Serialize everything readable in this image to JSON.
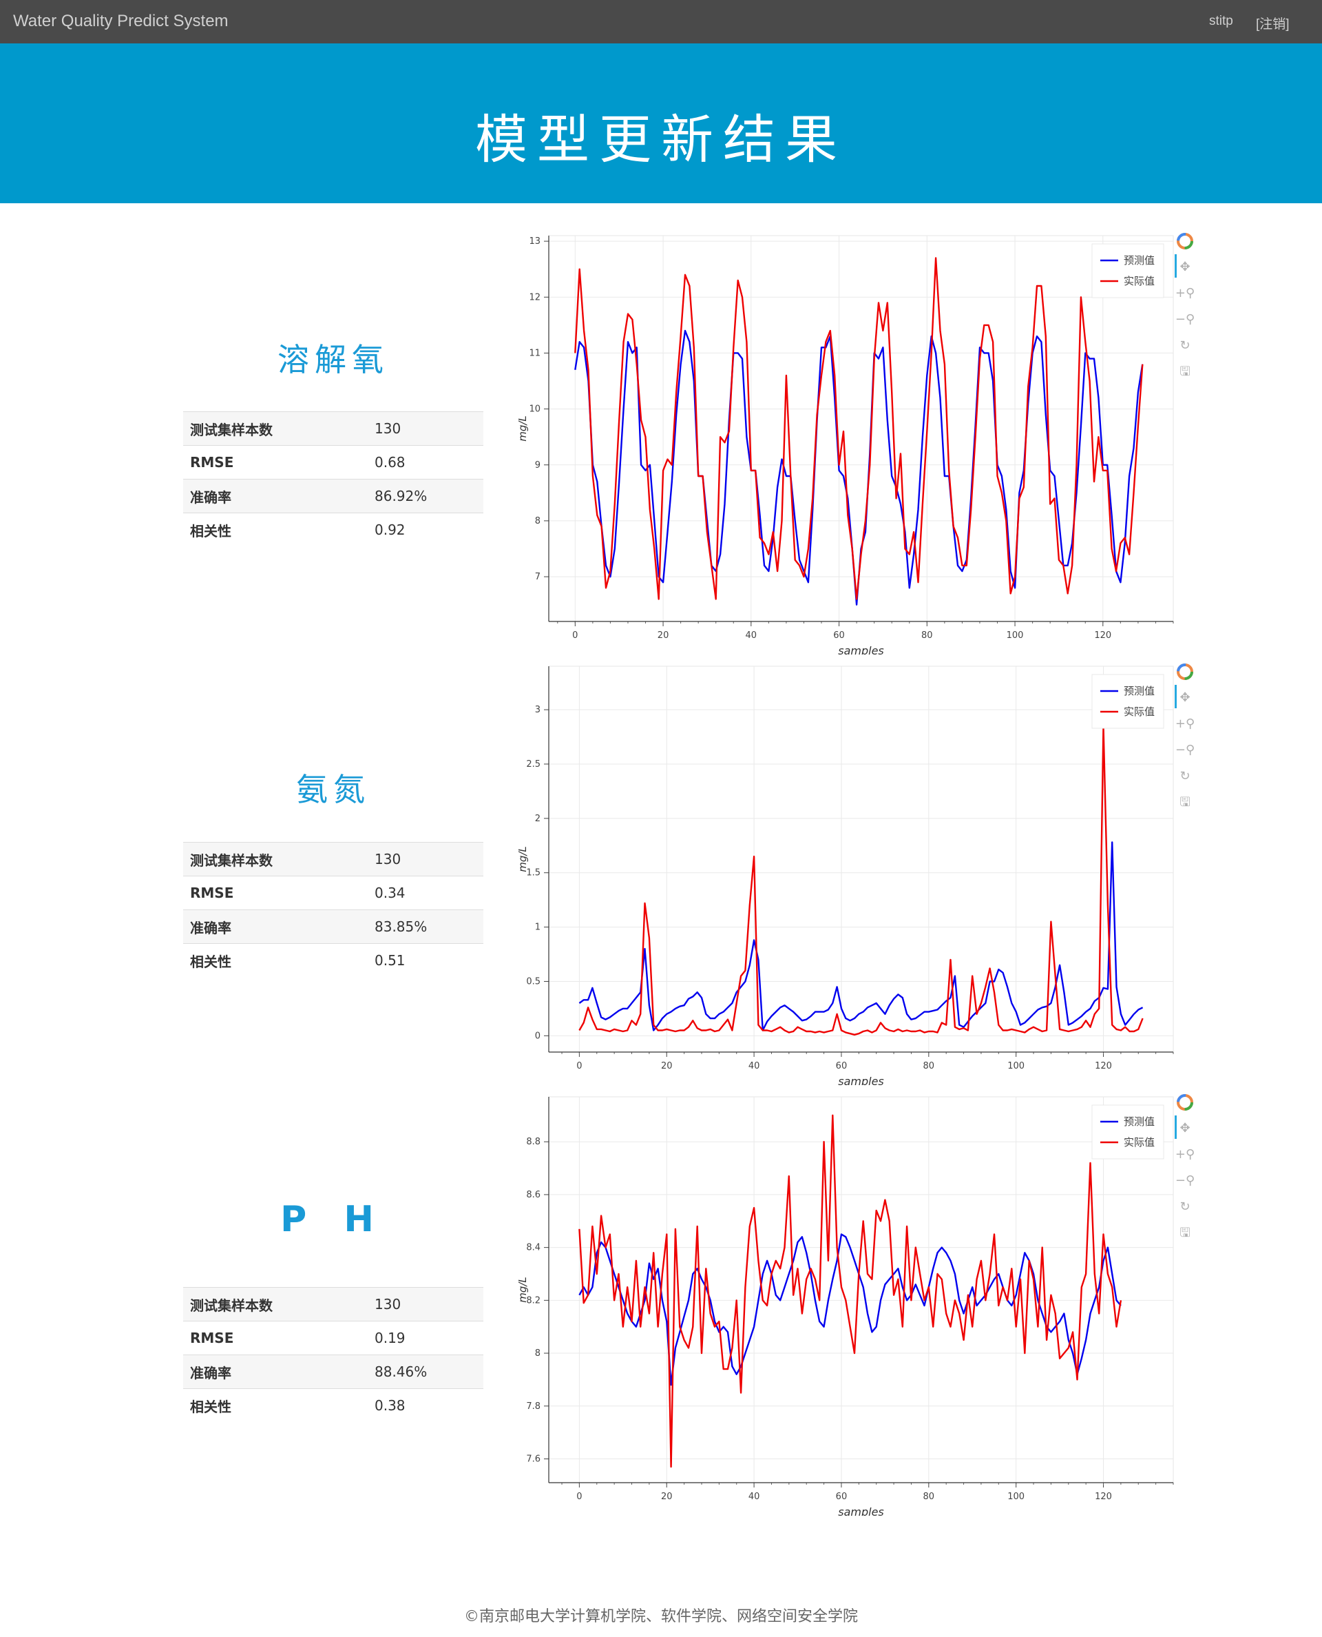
{
  "navbar": {
    "brand": "Water Quality Predict System",
    "user": "stitp",
    "logout": "[注销]"
  },
  "hero": {
    "title": "模型更新结果"
  },
  "sections": [
    {
      "title": "溶解氧",
      "metrics": [
        {
          "label": "测试集样本数",
          "value": "130"
        },
        {
          "label": "RMSE",
          "value": "0.68"
        },
        {
          "label": "准确率",
          "value": "86.92%"
        },
        {
          "label": "相关性",
          "value": "0.92"
        }
      ]
    },
    {
      "title": "氨氮",
      "metrics": [
        {
          "label": "测试集样本数",
          "value": "130"
        },
        {
          "label": "RMSE",
          "value": "0.34"
        },
        {
          "label": "准确率",
          "value": "83.85%"
        },
        {
          "label": "相关性",
          "value": "0.51"
        }
      ]
    },
    {
      "title": "P H",
      "metrics": [
        {
          "label": "测试集样本数",
          "value": "130"
        },
        {
          "label": "RMSE",
          "value": "0.19"
        },
        {
          "label": "准确率",
          "value": "88.46%"
        },
        {
          "label": "相关性",
          "value": "0.38"
        }
      ]
    }
  ],
  "toolbar_icons": [
    "bokeh-logo-icon",
    "pan-icon",
    "zoom-in-icon",
    "zoom-out-icon",
    "reset-icon",
    "save-icon"
  ],
  "chart_data": [
    {
      "type": "line",
      "xlabel": "samples",
      "ylabel": "mg/L",
      "xlim": [
        -6,
        136
      ],
      "ylim": [
        6.2,
        13.1
      ],
      "xticks": [
        0,
        20,
        40,
        60,
        80,
        100,
        120
      ],
      "yticks": [
        7,
        8,
        9,
        10,
        11,
        12,
        13
      ],
      "grid": true,
      "legend": "top-right",
      "series": [
        {
          "name": "预测值",
          "color": "#0000ee",
          "values": [
            10.7,
            11.2,
            11.1,
            10.5,
            9.0,
            8.7,
            7.9,
            7.2,
            7.0,
            7.5,
            8.7,
            10.0,
            11.2,
            11.0,
            11.1,
            9.0,
            8.9,
            9.0,
            8.0,
            7.0,
            6.9,
            7.8,
            8.7,
            9.9,
            10.8,
            11.4,
            11.2,
            10.5,
            8.8,
            8.8,
            8.0,
            7.2,
            7.1,
            7.4,
            8.3,
            9.8,
            11.0,
            11.0,
            10.9,
            9.5,
            8.9,
            8.9,
            8.1,
            7.2,
            7.1,
            7.7,
            8.6,
            9.1,
            8.8,
            8.8,
            8.0,
            7.3,
            7.1,
            6.9,
            8.2,
            9.8,
            11.1,
            11.1,
            11.3,
            10.2,
            8.9,
            8.8,
            8.4,
            7.5,
            6.5,
            7.5,
            7.8,
            9.2,
            11.0,
            10.9,
            11.1,
            9.8,
            8.8,
            8.6,
            8.3,
            7.8,
            6.8,
            7.4,
            8.2,
            9.5,
            10.6,
            11.3,
            11.0,
            10.2,
            8.8,
            8.8,
            7.9,
            7.2,
            7.1,
            7.3,
            8.4,
            9.7,
            11.1,
            11.0,
            11.0,
            10.5,
            9.0,
            8.8,
            8.2,
            7.1,
            6.8,
            8.5,
            8.9,
            10.1,
            11.0,
            11.3,
            11.2,
            9.9,
            8.9,
            8.8,
            8.0,
            7.2,
            7.2,
            7.6,
            8.5,
            9.7,
            11.0,
            10.9,
            10.9,
            10.2,
            9.0,
            9.0,
            8.1,
            7.1,
            6.9,
            7.6,
            8.8,
            9.3,
            10.3,
            10.8
          ]
        },
        {
          "name": "实际值",
          "color": "#ee0000",
          "values": [
            11.0,
            12.5,
            11.4,
            10.7,
            8.8,
            8.1,
            7.9,
            6.8,
            7.1,
            8.3,
            9.8,
            11.2,
            11.7,
            11.6,
            10.8,
            9.8,
            9.5,
            8.2,
            7.5,
            6.6,
            8.9,
            9.1,
            9.0,
            10.3,
            11.3,
            12.4,
            12.2,
            11.1,
            8.8,
            8.8,
            7.8,
            7.2,
            6.6,
            9.5,
            9.4,
            9.6,
            11.1,
            12.3,
            12.0,
            11.2,
            8.9,
            8.9,
            7.7,
            7.6,
            7.4,
            7.8,
            7.1,
            8.0,
            10.6,
            8.8,
            7.3,
            7.2,
            7.0,
            7.5,
            8.4,
            9.9,
            10.6,
            11.2,
            11.4,
            10.6,
            9.0,
            9.6,
            8.1,
            7.5,
            6.6,
            7.4,
            8.0,
            9.0,
            10.9,
            11.9,
            11.4,
            11.9,
            10.3,
            8.4,
            9.2,
            7.5,
            7.4,
            7.8,
            6.9,
            8.3,
            9.6,
            11.0,
            12.7,
            11.4,
            10.8,
            8.9,
            7.9,
            7.7,
            7.2,
            7.2,
            8.2,
            9.5,
            10.9,
            11.5,
            11.5,
            11.2,
            8.8,
            8.5,
            8.0,
            6.7,
            7.0,
            8.4,
            8.6,
            10.4,
            11.1,
            12.2,
            12.2,
            11.3,
            8.3,
            8.4,
            7.3,
            7.2,
            6.7,
            7.2,
            9.0,
            12.0,
            11.2,
            10.5,
            8.7,
            9.5,
            8.9,
            8.9,
            7.5,
            7.1,
            7.6,
            7.7,
            7.4,
            8.5,
            9.7,
            10.8
          ]
        }
      ]
    },
    {
      "type": "line",
      "xlabel": "samples",
      "ylabel": "mg/L",
      "xlim": [
        -7,
        136
      ],
      "ylim": [
        -0.15,
        3.4
      ],
      "xticks": [
        0,
        20,
        40,
        60,
        80,
        100,
        120
      ],
      "yticks": [
        0,
        0.5,
        1,
        1.5,
        2,
        2.5,
        3
      ],
      "grid": true,
      "legend": "top-right",
      "series": [
        {
          "name": "预测值",
          "color": "#0000ee",
          "values": [
            0.3,
            0.33,
            0.33,
            0.44,
            0.3,
            0.17,
            0.15,
            0.17,
            0.2,
            0.23,
            0.25,
            0.25,
            0.3,
            0.35,
            0.4,
            0.8,
            0.28,
            0.05,
            0.1,
            0.16,
            0.2,
            0.22,
            0.25,
            0.27,
            0.28,
            0.34,
            0.36,
            0.4,
            0.35,
            0.2,
            0.16,
            0.16,
            0.2,
            0.22,
            0.26,
            0.3,
            0.4,
            0.45,
            0.5,
            0.65,
            0.88,
            0.7,
            0.05,
            0.13,
            0.18,
            0.22,
            0.26,
            0.28,
            0.25,
            0.22,
            0.18,
            0.14,
            0.15,
            0.18,
            0.22,
            0.22,
            0.22,
            0.24,
            0.3,
            0.45,
            0.25,
            0.16,
            0.14,
            0.16,
            0.2,
            0.22,
            0.26,
            0.28,
            0.3,
            0.25,
            0.2,
            0.28,
            0.34,
            0.38,
            0.35,
            0.2,
            0.15,
            0.16,
            0.19,
            0.22,
            0.22,
            0.23,
            0.24,
            0.28,
            0.32,
            0.35,
            0.55,
            0.1,
            0.08,
            0.13,
            0.18,
            0.22,
            0.26,
            0.3,
            0.5,
            0.5,
            0.61,
            0.58,
            0.45,
            0.3,
            0.22,
            0.1,
            0.12,
            0.16,
            0.2,
            0.24,
            0.26,
            0.27,
            0.3,
            0.45,
            0.65,
            0.4,
            0.1,
            0.12,
            0.15,
            0.18,
            0.22,
            0.25,
            0.32,
            0.35,
            0.44,
            0.43,
            1.78,
            0.45,
            0.2,
            0.1,
            0.15,
            0.2,
            0.24,
            0.26
          ]
        },
        {
          "name": "实际值",
          "color": "#ee0000",
          "values": [
            0.05,
            0.12,
            0.26,
            0.15,
            0.06,
            0.06,
            0.05,
            0.04,
            0.06,
            0.05,
            0.04,
            0.05,
            0.14,
            0.1,
            0.2,
            1.22,
            0.9,
            0.1,
            0.05,
            0.05,
            0.06,
            0.05,
            0.04,
            0.05,
            0.05,
            0.08,
            0.14,
            0.07,
            0.05,
            0.05,
            0.06,
            0.04,
            0.05,
            0.1,
            0.15,
            0.05,
            0.3,
            0.55,
            0.6,
            1.2,
            1.65,
            0.1,
            0.05,
            0.05,
            0.04,
            0.06,
            0.08,
            0.05,
            0.03,
            0.04,
            0.08,
            0.06,
            0.04,
            0.04,
            0.03,
            0.04,
            0.03,
            0.04,
            0.05,
            0.2,
            0.05,
            0.03,
            0.02,
            0.01,
            0.02,
            0.04,
            0.05,
            0.03,
            0.05,
            0.12,
            0.07,
            0.05,
            0.04,
            0.06,
            0.04,
            0.05,
            0.04,
            0.04,
            0.05,
            0.03,
            0.04,
            0.04,
            0.03,
            0.12,
            0.1,
            0.7,
            0.08,
            0.06,
            0.07,
            0.05,
            0.55,
            0.2,
            0.3,
            0.45,
            0.62,
            0.4,
            0.1,
            0.05,
            0.05,
            0.06,
            0.05,
            0.04,
            0.03,
            0.06,
            0.08,
            0.06,
            0.04,
            0.05,
            1.05,
            0.55,
            0.06,
            0.05,
            0.04,
            0.05,
            0.06,
            0.08,
            0.14,
            0.08,
            0.2,
            0.25,
            2.85,
            1.2,
            0.1,
            0.06,
            0.05,
            0.08,
            0.04,
            0.04,
            0.06,
            0.16
          ]
        }
      ]
    },
    {
      "type": "line",
      "xlabel": "samples",
      "ylabel": "mg/L",
      "xlim": [
        -7,
        136
      ],
      "ylim": [
        7.51,
        8.97
      ],
      "xticks": [
        0,
        20,
        40,
        60,
        80,
        100,
        120
      ],
      "yticks": [
        7.6,
        7.8,
        8,
        8.2,
        8.4,
        8.6,
        8.8
      ],
      "grid": true,
      "legend": "top-right",
      "series": [
        {
          "name": "预测值",
          "color": "#0000ee",
          "values": [
            8.22,
            8.25,
            8.22,
            8.25,
            8.38,
            8.42,
            8.4,
            8.35,
            8.3,
            8.25,
            8.2,
            8.15,
            8.12,
            8.1,
            8.15,
            8.2,
            8.34,
            8.28,
            8.32,
            8.2,
            8.12,
            7.88,
            8.02,
            8.08,
            8.14,
            8.2,
            8.3,
            8.32,
            8.28,
            8.25,
            8.2,
            8.12,
            8.08,
            8.1,
            8.08,
            7.95,
            7.92,
            7.95,
            8.0,
            8.05,
            8.1,
            8.2,
            8.3,
            8.35,
            8.3,
            8.22,
            8.2,
            8.25,
            8.3,
            8.35,
            8.42,
            8.44,
            8.38,
            8.3,
            8.2,
            8.12,
            8.1,
            8.2,
            8.28,
            8.35,
            8.45,
            8.44,
            8.4,
            8.35,
            8.3,
            8.25,
            8.15,
            8.08,
            8.1,
            8.2,
            8.26,
            8.28,
            8.3,
            8.32,
            8.25,
            8.2,
            8.22,
            8.26,
            8.22,
            8.18,
            8.25,
            8.32,
            8.38,
            8.4,
            8.38,
            8.35,
            8.3,
            8.2,
            8.15,
            8.2,
            8.25,
            8.18,
            8.2,
            8.22,
            8.25,
            8.28,
            8.3,
            8.25,
            8.2,
            8.18,
            8.22,
            8.3,
            8.38,
            8.35,
            8.3,
            8.2,
            8.15,
            8.1,
            8.08,
            8.1,
            8.12,
            8.15,
            8.05,
            8.0,
            7.92,
            7.98,
            8.05,
            8.15,
            8.2,
            8.25,
            8.35,
            8.4,
            8.3,
            8.2,
            8.18
          ]
        },
        {
          "name": "实际值",
          "color": "#ee0000",
          "values": [
            8.47,
            8.19,
            8.22,
            8.48,
            8.3,
            8.52,
            8.4,
            8.45,
            8.2,
            8.3,
            8.1,
            8.25,
            8.12,
            8.35,
            8.1,
            8.25,
            8.15,
            8.38,
            8.1,
            8.3,
            8.45,
            7.57,
            8.47,
            8.1,
            8.05,
            8.02,
            8.1,
            8.48,
            8.0,
            8.32,
            8.15,
            8.1,
            8.12,
            7.94,
            7.94,
            8.02,
            8.2,
            7.85,
            8.25,
            8.48,
            8.55,
            8.35,
            8.2,
            8.18,
            8.3,
            8.35,
            8.32,
            8.4,
            8.67,
            8.22,
            8.32,
            8.15,
            8.28,
            8.32,
            8.28,
            8.2,
            8.8,
            8.35,
            8.9,
            8.4,
            8.25,
            8.2,
            8.1,
            8.0,
            8.3,
            8.5,
            8.3,
            8.28,
            8.54,
            8.5,
            8.58,
            8.5,
            8.22,
            8.28,
            8.1,
            8.48,
            8.2,
            8.4,
            8.3,
            8.2,
            8.25,
            8.1,
            8.3,
            8.28,
            8.15,
            8.1,
            8.2,
            8.15,
            8.05,
            8.22,
            8.1,
            8.28,
            8.35,
            8.2,
            8.3,
            8.45,
            8.18,
            8.25,
            8.2,
            8.32,
            8.1,
            8.28,
            8.0,
            8.35,
            8.28,
            8.1,
            8.4,
            8.05,
            8.22,
            8.15,
            7.98,
            8.0,
            8.02,
            8.08,
            7.9,
            8.25,
            8.3,
            8.72,
            8.3,
            8.15,
            8.45,
            8.3,
            8.25,
            8.1,
            8.2
          ]
        }
      ]
    }
  ],
  "footer": {
    "text": "©南京邮电大学计算机学院、软件学院、网络空间安全学院"
  }
}
